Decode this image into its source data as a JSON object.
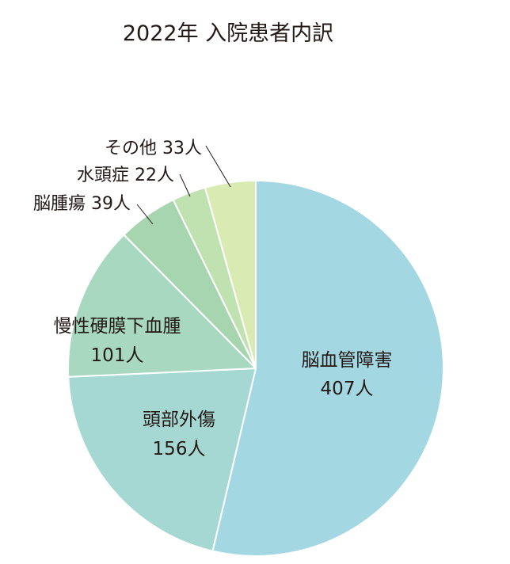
{
  "chart_data": {
    "type": "pie",
    "title": "2022年 入院患者内訳",
    "unit": "人",
    "slices": [
      {
        "name": "脳血管障害",
        "value": 407,
        "value_label": "407人",
        "color": "#a3d8e3"
      },
      {
        "name": "頭部外傷",
        "value": 156,
        "value_label": "156人",
        "color": "#a6d8d3"
      },
      {
        "name": "慢性硬膜下血腫",
        "value": 101,
        "value_label": "101人",
        "color": "#a8d9c0"
      },
      {
        "name": "脳腫瘍",
        "value": 39,
        "value_label": "39人",
        "color": "#a7d5b0"
      },
      {
        "name": "水頭症",
        "value": 22,
        "value_label": "22人",
        "color": "#c0e2b0"
      },
      {
        "name": "その他",
        "value": 33,
        "value_label": "33人",
        "color": "#d9ebb2"
      }
    ],
    "legend": "none",
    "start": "12 o'clock",
    "direction": "clockwise"
  }
}
